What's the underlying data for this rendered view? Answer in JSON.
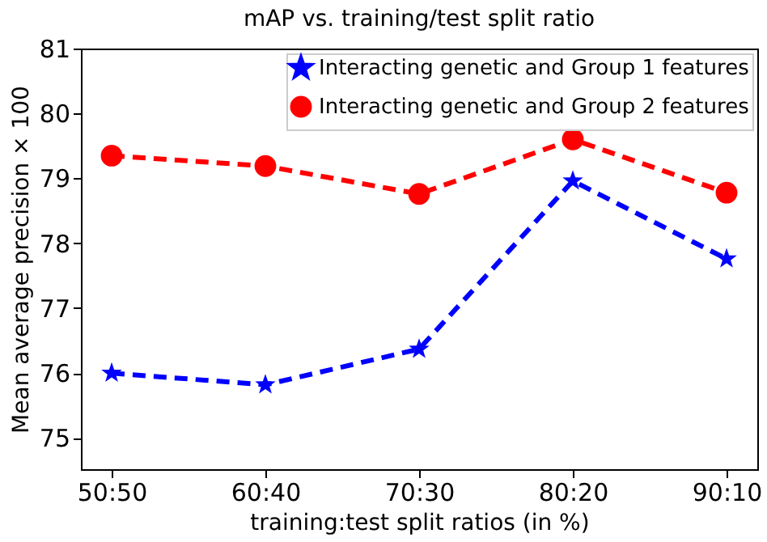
{
  "chart_data": {
    "type": "line",
    "title": "mAP vs. training/test split ratio",
    "xlabel": "training:test split ratios (in %)",
    "ylabel": "Mean average precision × 100",
    "categories": [
      "50:50",
      "60:40",
      "70:30",
      "80:20",
      "90:10"
    ],
    "series": [
      {
        "name": "Interacting genetic and Group 1 features",
        "color": "#0000ff",
        "marker": "star",
        "values": [
          76.0,
          75.82,
          76.37,
          78.96,
          77.76
        ]
      },
      {
        "name": "Interacting genetic and Group 2 features",
        "color": "#ff0000",
        "marker": "circle",
        "values": [
          79.35,
          79.19,
          78.76,
          79.6,
          78.78
        ]
      }
    ],
    "ylim": [
      74.52,
      81
    ],
    "yticks": [
      75,
      76,
      77,
      78,
      79,
      80,
      81
    ],
    "grid": false,
    "legend": "top right",
    "line_style": "dashed"
  }
}
